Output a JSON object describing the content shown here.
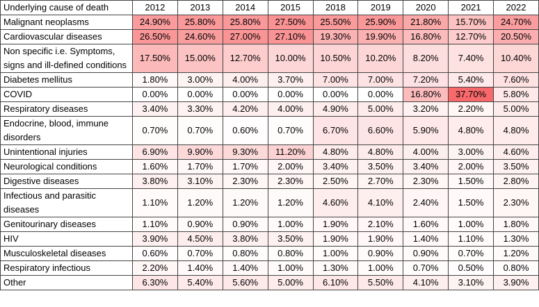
{
  "table": {
    "header": [
      "Underlying cause of death",
      "2012",
      "2013",
      "2014",
      "2015",
      "2018",
      "2019",
      "2020",
      "2021",
      "2022"
    ],
    "rows": [
      [
        "Malignant neoplasms",
        "24.90%",
        "25.80%",
        "25.80%",
        "27.50%",
        "25.50%",
        "25.90%",
        "21.80%",
        "15.70%",
        "24.70%"
      ],
      [
        "Cardiovascular diseases",
        "26.50%",
        "24.60%",
        "27.00%",
        "27.10%",
        "19.30%",
        "19.90%",
        "16.80%",
        "12.70%",
        "20.50%"
      ],
      [
        "Non specific i.e. Symptoms, signs and ill-defined conditions",
        "17.50%",
        "15.00%",
        "12.70%",
        "10.00%",
        "10.50%",
        "10.20%",
        "8.20%",
        "7.40%",
        "10.40%"
      ],
      [
        "Diabetes mellitus",
        "1.80%",
        "3.00%",
        "4.00%",
        "3.70%",
        "7.00%",
        "7.00%",
        "7.20%",
        "5.40%",
        "7.60%"
      ],
      [
        "COVID",
        "0.00%",
        "0.00%",
        "0.00%",
        "0.00%",
        "0.00%",
        "0.00%",
        "16.80%",
        "37.70%",
        "5.80%"
      ],
      [
        "Respiratory diseases",
        "3.40%",
        "3.30%",
        "4.20%",
        "4.00%",
        "4.90%",
        "5.00%",
        "3.20%",
        "2.20%",
        "5.00%"
      ],
      [
        "Endocrine, blood, immune disorders",
        "0.70%",
        "0.70%",
        "0.60%",
        "0.70%",
        "6.70%",
        "6.60%",
        "5.90%",
        "4.80%",
        "4.80%"
      ],
      [
        "Unintentional injuries",
        "6.90%",
        "9.90%",
        "9.30%",
        "11.20%",
        "4.80%",
        "4.80%",
        "4.00%",
        "3.00%",
        "4.60%"
      ],
      [
        "Neurological conditions",
        "1.60%",
        "1.70%",
        "1.70%",
        "2.00%",
        "3.40%",
        "3.50%",
        "3.40%",
        "2.00%",
        "3.50%"
      ],
      [
        "Digestive diseases",
        "3.80%",
        "3.10%",
        "2.30%",
        "2.30%",
        "2.50%",
        "2.70%",
        "2.30%",
        "1.50%",
        "2.80%"
      ],
      [
        "Infectious and parasitic diseases",
        "1.10%",
        "1.20%",
        "1.20%",
        "1.20%",
        "4.60%",
        "4.10%",
        "2.40%",
        "1.50%",
        "2.30%"
      ],
      [
        "Genitourinary diseases",
        "1.10%",
        "0.90%",
        "0.90%",
        "1.00%",
        "1.90%",
        "2.10%",
        "1.60%",
        "1.00%",
        "1.80%"
      ],
      [
        "HIV",
        "3.90%",
        "4.50%",
        "3.80%",
        "3.50%",
        "1.90%",
        "1.90%",
        "1.40%",
        "1.10%",
        "1.30%"
      ],
      [
        "Musculoskeletal diseases",
        "0.60%",
        "0.70%",
        "0.80%",
        "0.80%",
        "1.00%",
        "0.90%",
        "0.90%",
        "0.70%",
        "1.20%"
      ],
      [
        "Respiratory infectious",
        "2.20%",
        "1.40%",
        "1.40%",
        "1.00%",
        "1.30%",
        "1.00%",
        "0.70%",
        "0.50%",
        "0.80%"
      ],
      [
        "Other",
        "6.30%",
        "5.40%",
        "5.60%",
        "5.00%",
        "6.10%",
        "5.50%",
        "4.10%",
        "3.10%",
        "3.90%"
      ]
    ]
  }
}
